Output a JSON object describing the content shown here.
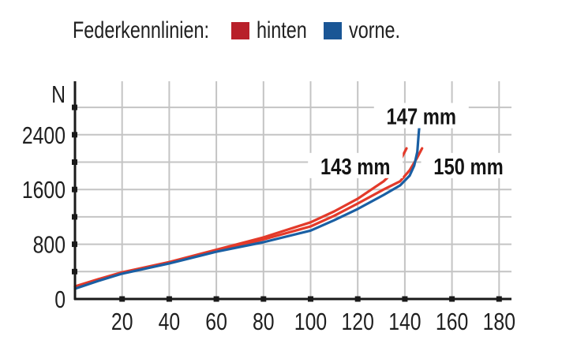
{
  "legend": {
    "title": "Federkennlinien:",
    "items": [
      {
        "label": "hinten",
        "color": "#b8202a"
      },
      {
        "label": "vorne.",
        "color": "#1a5695"
      }
    ]
  },
  "chart_data": {
    "type": "line",
    "title": "Federkennlinien: hinten vorne.",
    "xlabel": "",
    "ylabel": "N",
    "xlim": [
      0,
      185
    ],
    "ylim": [
      0,
      2900
    ],
    "x_ticks": [
      20,
      40,
      60,
      80,
      100,
      120,
      140,
      160,
      180
    ],
    "y_ticks_labeled": [
      0,
      800,
      1600,
      2400
    ],
    "y_ticks_all": [
      400,
      800,
      1200,
      1600,
      2000,
      2400,
      2800
    ],
    "grid": true,
    "legend_position": "top",
    "series": [
      {
        "name": "hinten (143 mm)",
        "color": "#e33a2a",
        "x": [
          0,
          10,
          20,
          40,
          60,
          80,
          100,
          110,
          120,
          131,
          135,
          138,
          140.7
        ],
        "y": [
          185,
          290,
          390,
          540,
          720,
          900,
          1120,
          1280,
          1465,
          1720,
          1850,
          2020,
          2200
        ]
      },
      {
        "name": "hinten (150 mm)",
        "color": "#e33a2a",
        "x": [
          0,
          10,
          20,
          40,
          60,
          80,
          100,
          110,
          120,
          131,
          138,
          142,
          145,
          147.3
        ],
        "y": [
          175,
          280,
          380,
          530,
          705,
          870,
          1060,
          1215,
          1395,
          1600,
          1720,
          1880,
          2050,
          2200
        ]
      },
      {
        "name": "vorne (147 mm)",
        "color": "#1a5fa3",
        "x": [
          0,
          10,
          20,
          40,
          60,
          80,
          100,
          110,
          120,
          131,
          138,
          142,
          144,
          145.3,
          145.8,
          146.3
        ],
        "y": [
          150,
          265,
          370,
          520,
          690,
          830,
          1000,
          1150,
          1315,
          1520,
          1660,
          1800,
          1950,
          2150,
          2380,
          2580
        ]
      }
    ],
    "annotations": [
      {
        "text": "147 mm",
        "x": 147,
        "y": 2680
      },
      {
        "text": "143 mm",
        "x": 119,
        "y": 1950
      },
      {
        "text": "150 mm",
        "x": 167,
        "y": 1950
      }
    ]
  },
  "axes": {
    "y_unit": "N",
    "y_tick_labels": [
      "0",
      "800",
      "1600",
      "2400"
    ],
    "x_tick_labels": [
      "20",
      "40",
      "60",
      "80",
      "100",
      "120",
      "140",
      "160",
      "180"
    ]
  }
}
